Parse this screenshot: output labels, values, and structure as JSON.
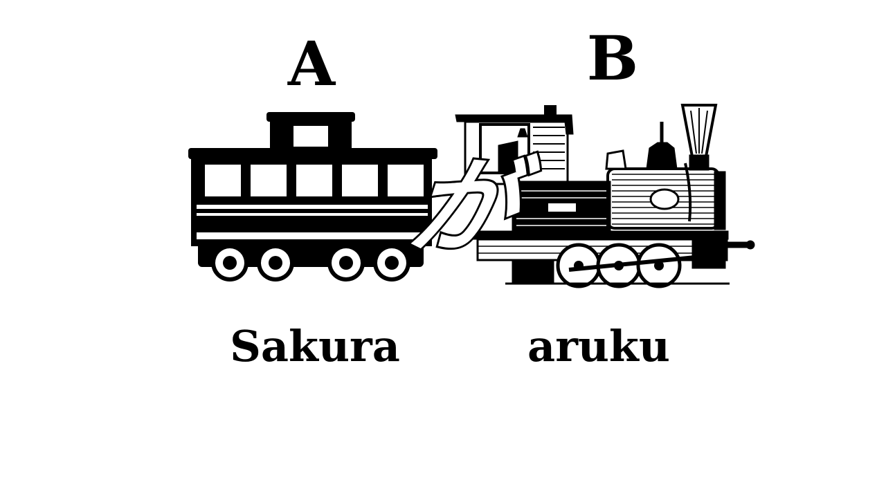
{
  "labels": {
    "a": "A",
    "b": "B"
  },
  "words": {
    "a": "Sakura",
    "b": "aruku"
  },
  "particle": "が",
  "colors": {
    "ink": "#000000",
    "paper": "#ffffff"
  }
}
